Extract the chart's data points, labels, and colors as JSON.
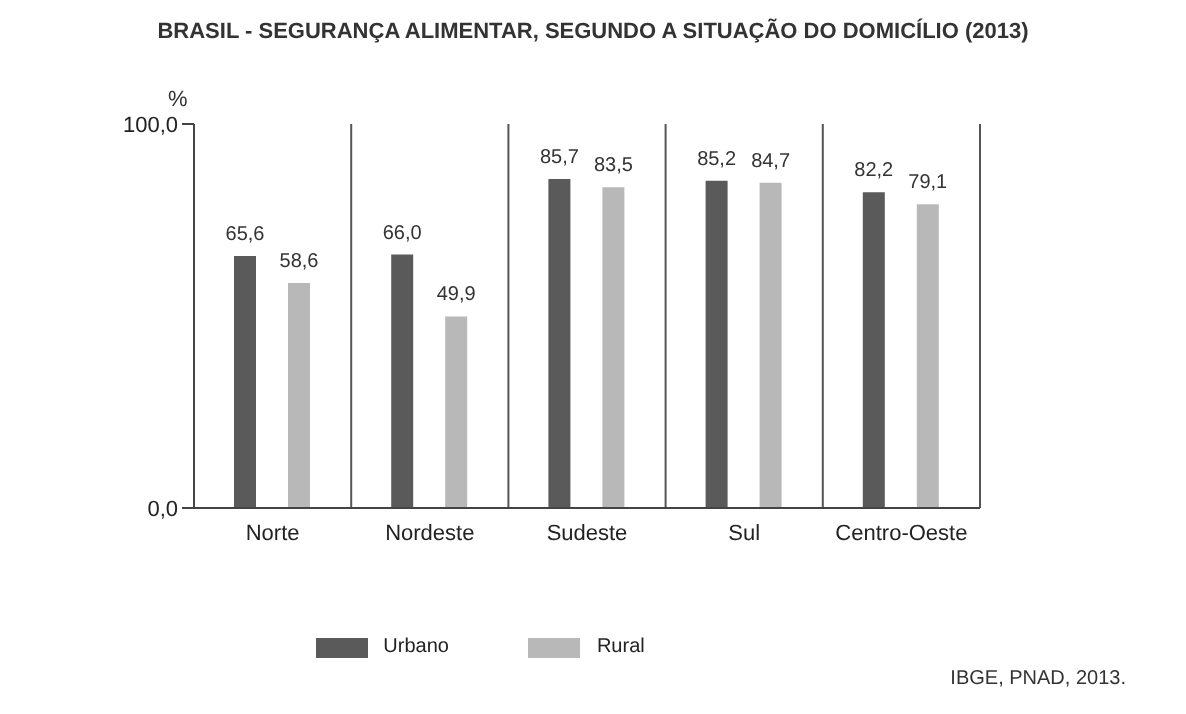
{
  "chart_data": {
    "type": "bar",
    "title": "BRASIL - SEGURANÇA ALIMENTAR,  SEGUNDO A SITUAÇÃO DO DOMICÍLIO (2013)",
    "ylabel": "%",
    "categories": [
      "Norte",
      "Nordeste",
      "Sudeste",
      "Sul",
      "Centro-Oeste"
    ],
    "series": [
      {
        "name": "Urbano",
        "color": "#5a5a5a",
        "values": [
          65.6,
          66.0,
          85.7,
          85.2,
          82.2
        ],
        "value_labels": [
          "65,6",
          "66,0",
          "85,7",
          "85,2",
          "82,2"
        ]
      },
      {
        "name": "Rural",
        "color": "#b8b8b8",
        "values": [
          58.6,
          49.9,
          83.5,
          84.7,
          79.1
        ],
        "value_labels": [
          "58,6",
          "49,9",
          "83,5",
          "84,7",
          "79,1"
        ]
      }
    ],
    "ylim": [
      0,
      100
    ],
    "yticks": [
      {
        "value": 0,
        "label": "0,0"
      },
      {
        "value": 100,
        "label": "100,0"
      }
    ],
    "grid": "x",
    "legend": "bottom",
    "annotations": [
      "IBGE, PNAD, 2013."
    ]
  }
}
